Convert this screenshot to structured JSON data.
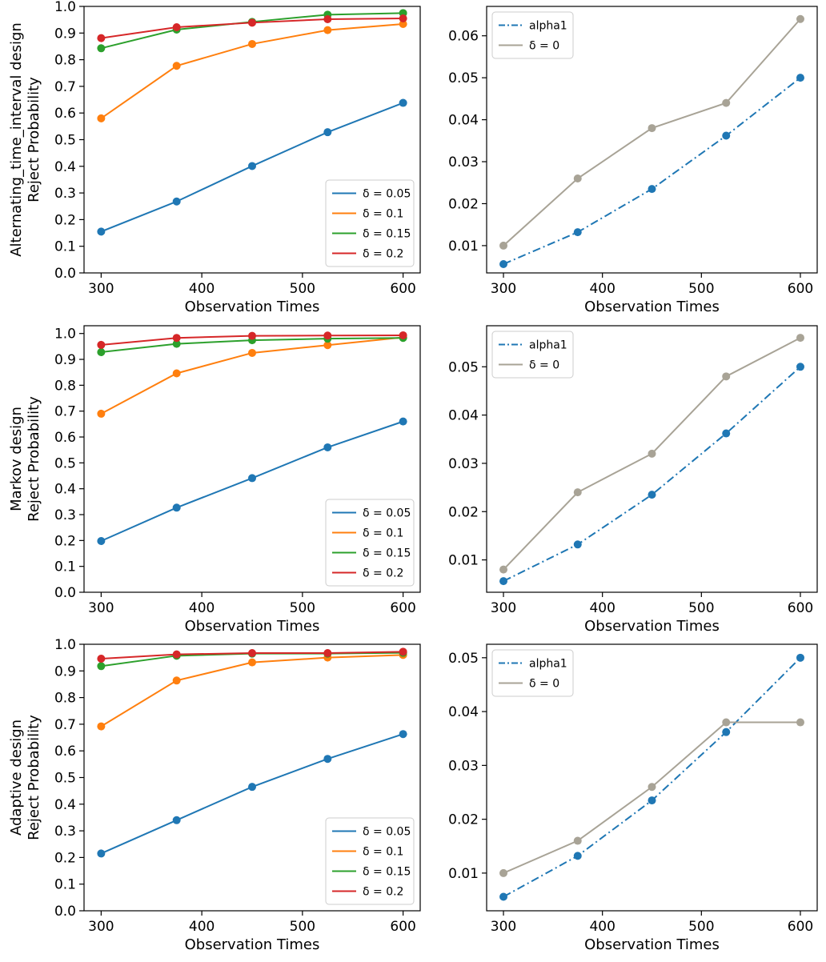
{
  "chart_data": [
    {
      "type": "line",
      "title": "",
      "xlabel": "Observation Times",
      "ylabel": [
        "Alternating_time_interval design",
        "Reject Probability"
      ],
      "x": [
        300,
        375,
        450,
        525,
        600
      ],
      "xlim": [
        283,
        617
      ],
      "ylim": [
        0.0,
        1.0
      ],
      "xticks": [
        300,
        400,
        500,
        600
      ],
      "yticks": [
        0.0,
        0.1,
        0.2,
        0.3,
        0.4,
        0.5,
        0.6,
        0.7,
        0.8,
        0.9,
        1.0
      ],
      "legend": "lower-right",
      "series": [
        {
          "name": "δ = 0.05",
          "color": "#1f77b4",
          "dash": "solid",
          "values": [
            0.155,
            0.268,
            0.401,
            0.528,
            0.638
          ]
        },
        {
          "name": "δ = 0.1",
          "color": "#ff7f0e",
          "dash": "solid",
          "values": [
            0.58,
            0.777,
            0.859,
            0.911,
            0.934
          ]
        },
        {
          "name": "δ = 0.15",
          "color": "#2ca02c",
          "dash": "solid",
          "values": [
            0.843,
            0.913,
            0.942,
            0.969,
            0.975
          ]
        },
        {
          "name": "δ = 0.2",
          "color": "#d62728",
          "dash": "solid",
          "values": [
            0.881,
            0.922,
            0.939,
            0.952,
            0.955
          ]
        }
      ]
    },
    {
      "type": "line",
      "title": "",
      "xlabel": "Observation Times",
      "ylabel": [],
      "x": [
        300,
        375,
        450,
        525,
        600
      ],
      "xlim": [
        283,
        617
      ],
      "ylim": [
        0.0035,
        0.067
      ],
      "xticks": [
        300,
        400,
        500,
        600
      ],
      "yticks": [
        0.01,
        0.02,
        0.03,
        0.04,
        0.05,
        0.06
      ],
      "legend": "upper-left",
      "series": [
        {
          "name": "alpha1",
          "color": "#1f77b4",
          "dash": "dashdot",
          "values": [
            0.0056,
            0.0132,
            0.0235,
            0.0362,
            0.05
          ]
        },
        {
          "name": "δ = 0",
          "color": "#a8a396",
          "dash": "solid",
          "values": [
            0.01,
            0.026,
            0.038,
            0.044,
            0.064
          ]
        }
      ]
    },
    {
      "type": "line",
      "title": "",
      "xlabel": "Observation Times",
      "ylabel": [
        "Markov design",
        "Reject Probability"
      ],
      "x": [
        300,
        375,
        450,
        525,
        600
      ],
      "xlim": [
        283,
        617
      ],
      "ylim": [
        0.0,
        1.03
      ],
      "xticks": [
        300,
        400,
        500,
        600
      ],
      "yticks": [
        0.0,
        0.1,
        0.2,
        0.3,
        0.4,
        0.5,
        0.6,
        0.7,
        0.8,
        0.9,
        1.0
      ],
      "legend": "lower-right",
      "series": [
        {
          "name": "δ = 0.05",
          "color": "#1f77b4",
          "dash": "solid",
          "values": [
            0.198,
            0.327,
            0.441,
            0.56,
            0.66
          ]
        },
        {
          "name": "δ = 0.1",
          "color": "#ff7f0e",
          "dash": "solid",
          "values": [
            0.69,
            0.846,
            0.925,
            0.955,
            0.985
          ]
        },
        {
          "name": "δ = 0.15",
          "color": "#2ca02c",
          "dash": "solid",
          "values": [
            0.928,
            0.96,
            0.974,
            0.98,
            0.983
          ]
        },
        {
          "name": "δ = 0.2",
          "color": "#d62728",
          "dash": "solid",
          "values": [
            0.956,
            0.983,
            0.991,
            0.992,
            0.993
          ]
        }
      ]
    },
    {
      "type": "line",
      "title": "",
      "xlabel": "Observation Times",
      "ylabel": [],
      "x": [
        300,
        375,
        450,
        525,
        600
      ],
      "xlim": [
        283,
        617
      ],
      "ylim": [
        0.0033,
        0.0585
      ],
      "xticks": [
        300,
        400,
        500,
        600
      ],
      "yticks": [
        0.01,
        0.02,
        0.03,
        0.04,
        0.05
      ],
      "legend": "upper-left",
      "series": [
        {
          "name": "alpha1",
          "color": "#1f77b4",
          "dash": "dashdot",
          "values": [
            0.0056,
            0.0132,
            0.0235,
            0.0362,
            0.05
          ]
        },
        {
          "name": "δ = 0",
          "color": "#a8a396",
          "dash": "solid",
          "values": [
            0.008,
            0.024,
            0.032,
            0.048,
            0.056
          ]
        }
      ]
    },
    {
      "type": "line",
      "title": "",
      "xlabel": "Observation Times",
      "ylabel": [
        "Adaptive design",
        "Reject Probability"
      ],
      "x": [
        300,
        375,
        450,
        525,
        600
      ],
      "xlim": [
        283,
        617
      ],
      "ylim": [
        0.0,
        1.0
      ],
      "xticks": [
        300,
        400,
        500,
        600
      ],
      "yticks": [
        0.0,
        0.1,
        0.2,
        0.3,
        0.4,
        0.5,
        0.6,
        0.7,
        0.8,
        0.9,
        1.0
      ],
      "legend": "lower-right",
      "series": [
        {
          "name": "δ = 0.05",
          "color": "#1f77b4",
          "dash": "solid",
          "values": [
            0.215,
            0.34,
            0.465,
            0.57,
            0.663
          ]
        },
        {
          "name": "δ = 0.1",
          "color": "#ff7f0e",
          "dash": "solid",
          "values": [
            0.692,
            0.864,
            0.932,
            0.95,
            0.96
          ]
        },
        {
          "name": "δ = 0.15",
          "color": "#2ca02c",
          "dash": "solid",
          "values": [
            0.918,
            0.957,
            0.965,
            0.965,
            0.968
          ]
        },
        {
          "name": "δ = 0.2",
          "color": "#d62728",
          "dash": "solid",
          "values": [
            0.946,
            0.962,
            0.967,
            0.967,
            0.972
          ]
        }
      ]
    },
    {
      "type": "line",
      "title": "",
      "xlabel": "Observation Times",
      "ylabel": [],
      "x": [
        300,
        375,
        450,
        525,
        600
      ],
      "xlim": [
        283,
        617
      ],
      "ylim": [
        0.003,
        0.0525
      ],
      "xticks": [
        300,
        400,
        500,
        600
      ],
      "yticks": [
        0.01,
        0.02,
        0.03,
        0.04,
        0.05
      ],
      "legend": "upper-left",
      "series": [
        {
          "name": "alpha1",
          "color": "#1f77b4",
          "dash": "dashdot",
          "values": [
            0.0056,
            0.0132,
            0.0235,
            0.0362,
            0.05
          ]
        },
        {
          "name": "δ = 0",
          "color": "#a8a396",
          "dash": "solid",
          "values": [
            0.01,
            0.016,
            0.026,
            0.038,
            0.038
          ]
        }
      ]
    }
  ]
}
